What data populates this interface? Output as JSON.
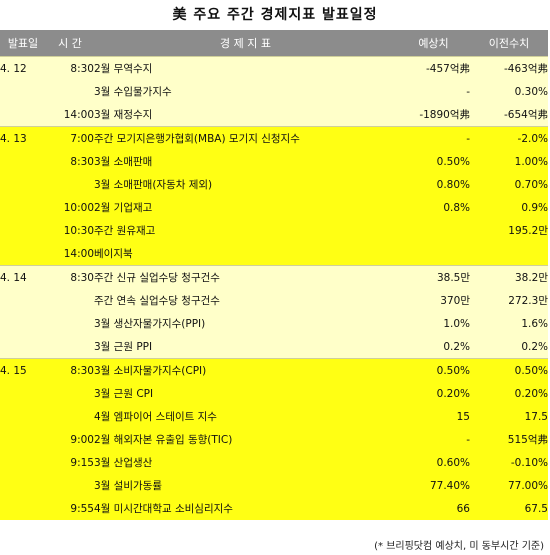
{
  "title": "美 주요 주간 경제지표 발표일정",
  "headers": {
    "date": "발표일",
    "time": "시 간",
    "indicator": "경 제 지 표",
    "forecast": "예상치",
    "previous": "이전수치"
  },
  "rows": [
    {
      "group": 0,
      "date": "4. 12",
      "time": "8:30",
      "indicator": "2월 무역수지",
      "forecast": "-457억弗",
      "previous": "-463억弗"
    },
    {
      "group": 0,
      "date": "",
      "time": "",
      "indicator": "3월 수입물가지수",
      "forecast": "-",
      "previous": "0.30%"
    },
    {
      "group": 0,
      "date": "",
      "time": "14:00",
      "indicator": "3월 재정수지",
      "forecast": "-1890억弗",
      "previous": "-654억弗"
    },
    {
      "group": 1,
      "date": "4. 13",
      "time": "7:00",
      "indicator": "주간 모기지은행가협회(MBA) 모기지 신청지수",
      "forecast": "-",
      "previous": "-2.0%"
    },
    {
      "group": 1,
      "date": "",
      "time": "8:30",
      "indicator": "3월 소매판매",
      "forecast": "0.50%",
      "previous": "1.00%"
    },
    {
      "group": 1,
      "date": "",
      "time": "",
      "indicator": "3월 소매판매(자동차 제외)",
      "forecast": "0.80%",
      "previous": "0.70%"
    },
    {
      "group": 1,
      "date": "",
      "time": "10:00",
      "indicator": "2월 기업재고",
      "forecast": "0.8%",
      "previous": "0.9%"
    },
    {
      "group": 1,
      "date": "",
      "time": "10:30",
      "indicator": "주간 원유재고",
      "forecast": "",
      "previous": "195.2만"
    },
    {
      "group": 1,
      "date": "",
      "time": "14:00",
      "indicator": "베이지북",
      "forecast": "",
      "previous": ""
    },
    {
      "group": 2,
      "date": "4. 14",
      "time": "8:30",
      "indicator": "주간 신규 실업수당 청구건수",
      "forecast": "38.5만",
      "previous": "38.2만"
    },
    {
      "group": 2,
      "date": "",
      "time": "",
      "indicator": "주간 연속 실업수당 청구건수",
      "forecast": "370만",
      "previous": "272.3만"
    },
    {
      "group": 2,
      "date": "",
      "time": "",
      "indicator": "3월 생산자물가지수(PPI)",
      "forecast": "1.0%",
      "previous": "1.6%"
    },
    {
      "group": 2,
      "date": "",
      "time": "",
      "indicator": "3월 근원 PPI",
      "forecast": "0.2%",
      "previous": "0.2%"
    },
    {
      "group": 3,
      "date": "4. 15",
      "time": "8:30",
      "indicator": "3월 소비자물가지수(CPI)",
      "forecast": "0.50%",
      "previous": "0.50%"
    },
    {
      "group": 3,
      "date": "",
      "time": "",
      "indicator": "3월 근원 CPI",
      "forecast": "0.20%",
      "previous": "0.20%"
    },
    {
      "group": 3,
      "date": "",
      "time": "",
      "indicator": "4월 엠파이어 스테이트 지수",
      "forecast": "15",
      "previous": "17.5"
    },
    {
      "group": 3,
      "date": "",
      "time": "9:00",
      "indicator": "2월 해외자본 유출입 동향(TIC)",
      "forecast": "-",
      "previous": "515억弗"
    },
    {
      "group": 3,
      "date": "",
      "time": "9:15",
      "indicator": "3월 산업생산",
      "forecast": "0.60%",
      "previous": "-0.10%"
    },
    {
      "group": 3,
      "date": "",
      "time": "",
      "indicator": "3월 설비가동률",
      "forecast": "77.40%",
      "previous": "77.00%"
    },
    {
      "group": 3,
      "date": "",
      "time": "9:55",
      "indicator": "4월 미시간대학교 소비심리지수",
      "forecast": "66",
      "previous": "67.5"
    }
  ],
  "footnote": "(* 브리핑닷컴 예상치, 미 동부시간 기준)",
  "colors": {
    "header_bg": "#8c8c8c",
    "pale_yellow": "#ffffc9",
    "bright_yellow": "#ffff14"
  }
}
